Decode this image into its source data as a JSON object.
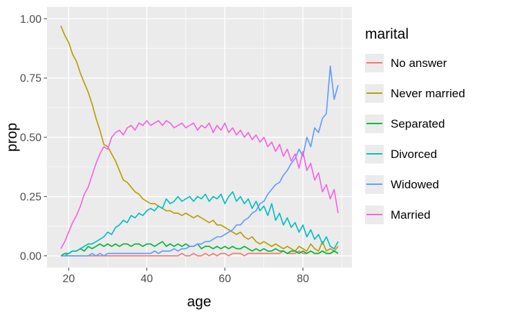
{
  "figure": {
    "background": "#FFFFFF",
    "panel_background": "#EBEBEB",
    "grid_color": "#FFFFFF",
    "tick_color": "#333333",
    "tick_label_color": "#4D4D4D",
    "text_color": "#000000"
  },
  "chart_data": {
    "type": "line",
    "title": "",
    "xlabel": "age",
    "ylabel": "prop",
    "legend_title": "marital",
    "legend_position": "right",
    "grid": true,
    "xlim": [
      14.45,
      92.55
    ],
    "ylim": [
      -0.05,
      1.05
    ],
    "x_ticks": {
      "values": [
        20,
        40,
        60,
        80
      ],
      "labels": [
        "20",
        "40",
        "60",
        "80"
      ],
      "minor": [
        30,
        50,
        70,
        90
      ]
    },
    "y_ticks": {
      "values": [
        0,
        0.25,
        0.5,
        0.75,
        1
      ],
      "labels": [
        "0.00",
        "0.25",
        "0.50",
        "0.75",
        "1.00"
      ],
      "minor": [
        0.125,
        0.375,
        0.625,
        0.875
      ]
    },
    "x": [
      18,
      19,
      20,
      21,
      22,
      23,
      24,
      25,
      26,
      27,
      28,
      29,
      30,
      31,
      32,
      33,
      34,
      35,
      36,
      37,
      38,
      39,
      40,
      41,
      42,
      43,
      44,
      45,
      46,
      47,
      48,
      49,
      50,
      51,
      52,
      53,
      54,
      55,
      56,
      57,
      58,
      59,
      60,
      61,
      62,
      63,
      64,
      65,
      66,
      67,
      68,
      69,
      70,
      71,
      72,
      73,
      74,
      75,
      76,
      77,
      78,
      79,
      80,
      81,
      82,
      83,
      84,
      85,
      86,
      87,
      88,
      89
    ],
    "series": [
      {
        "name": "No answer",
        "color": "#F8766D",
        "values": [
          0,
          0,
          0,
          0,
          0,
          0,
          0,
          0,
          0,
          0,
          0,
          0,
          0,
          0,
          0,
          0,
          0,
          0,
          0,
          0,
          0,
          0,
          0,
          0,
          0,
          0,
          0,
          0,
          0,
          0,
          0,
          0.01,
          0,
          0,
          0.01,
          0,
          0,
          0.01,
          0,
          0.01,
          0,
          0.01,
          0.01,
          0,
          0.01,
          0.01,
          0.01,
          0,
          0.01,
          0.01,
          0.01,
          0.01,
          0.01,
          0.01,
          0.01,
          0.01,
          0.01,
          0.02,
          0.01,
          0.01,
          0.01,
          0.02,
          0.01,
          0.01,
          0.02,
          0.01,
          0.01,
          0.02,
          0.01,
          0.01,
          0.02,
          0.01
        ]
      },
      {
        "name": "Never married",
        "color": "#B79F00",
        "values": [
          0.97,
          0.93,
          0.9,
          0.85,
          0.82,
          0.77,
          0.73,
          0.69,
          0.64,
          0.58,
          0.53,
          0.47,
          0.46,
          0.43,
          0.4,
          0.36,
          0.32,
          0.31,
          0.29,
          0.27,
          0.26,
          0.24,
          0.23,
          0.22,
          0.22,
          0.21,
          0.2,
          0.19,
          0.19,
          0.18,
          0.18,
          0.17,
          0.18,
          0.17,
          0.16,
          0.17,
          0.16,
          0.15,
          0.14,
          0.15,
          0.13,
          0.13,
          0.12,
          0.11,
          0.1,
          0.09,
          0.1,
          0.08,
          0.07,
          0.08,
          0.06,
          0.05,
          0.06,
          0.05,
          0.04,
          0.05,
          0.04,
          0.03,
          0.04,
          0.03,
          0.02,
          0.04,
          0.03,
          0.02,
          0.05,
          0.03,
          0.02,
          0.06,
          0.02,
          0.03,
          0.02,
          0.04
        ]
      },
      {
        "name": "Separated",
        "color": "#00BA38",
        "values": [
          0,
          0.01,
          0.01,
          0.02,
          0.02,
          0.03,
          0.02,
          0.04,
          0.03,
          0.04,
          0.05,
          0.04,
          0.05,
          0.04,
          0.05,
          0.04,
          0.05,
          0.05,
          0.04,
          0.05,
          0.05,
          0.04,
          0.05,
          0.05,
          0.04,
          0.05,
          0.06,
          0.04,
          0.05,
          0.04,
          0.05,
          0.04,
          0.05,
          0.04,
          0.04,
          0.05,
          0.03,
          0.04,
          0.04,
          0.03,
          0.04,
          0.03,
          0.04,
          0.03,
          0.04,
          0.03,
          0.03,
          0.04,
          0.03,
          0.02,
          0.03,
          0.02,
          0.03,
          0.02,
          0.02,
          0.03,
          0.02,
          0.02,
          0.01,
          0.02,
          0.02,
          0.01,
          0.02,
          0.01,
          0.02,
          0.01,
          0.01,
          0.02,
          0.01,
          0.01,
          0.02,
          0.01
        ]
      },
      {
        "name": "Divorced",
        "color": "#00BFC4",
        "values": [
          0,
          0,
          0.01,
          0.02,
          0.02,
          0.03,
          0.04,
          0.05,
          0.05,
          0.06,
          0.07,
          0.08,
          0.1,
          0.09,
          0.12,
          0.13,
          0.15,
          0.14,
          0.17,
          0.16,
          0.18,
          0.17,
          0.19,
          0.2,
          0.19,
          0.21,
          0.2,
          0.24,
          0.22,
          0.23,
          0.25,
          0.23,
          0.24,
          0.25,
          0.23,
          0.25,
          0.24,
          0.26,
          0.23,
          0.25,
          0.24,
          0.26,
          0.22,
          0.25,
          0.27,
          0.23,
          0.25,
          0.22,
          0.24,
          0.2,
          0.23,
          0.19,
          0.21,
          0.17,
          0.22,
          0.15,
          0.18,
          0.13,
          0.16,
          0.12,
          0.14,
          0.1,
          0.13,
          0.08,
          0.11,
          0.07,
          0.09,
          0.05,
          0.08,
          0.04,
          0.03,
          0.06
        ]
      },
      {
        "name": "Widowed",
        "color": "#619CFF",
        "values": [
          0,
          0,
          0,
          0,
          0,
          0,
          0,
          0,
          0.01,
          0,
          0.01,
          0,
          0.01,
          0.01,
          0.01,
          0.01,
          0.01,
          0.01,
          0.01,
          0.01,
          0.01,
          0.01,
          0.01,
          0.01,
          0.02,
          0.01,
          0.02,
          0.02,
          0.02,
          0.03,
          0.02,
          0.03,
          0.03,
          0.04,
          0.04,
          0.05,
          0.05,
          0.06,
          0.06,
          0.07,
          0.08,
          0.08,
          0.09,
          0.1,
          0.11,
          0.13,
          0.13,
          0.15,
          0.16,
          0.18,
          0.19,
          0.22,
          0.23,
          0.26,
          0.28,
          0.3,
          0.31,
          0.34,
          0.36,
          0.39,
          0.41,
          0.45,
          0.42,
          0.5,
          0.46,
          0.54,
          0.52,
          0.58,
          0.6,
          0.8,
          0.66,
          0.72
        ]
      },
      {
        "name": "Married",
        "color": "#F564E3",
        "values": [
          0.03,
          0.06,
          0.1,
          0.14,
          0.17,
          0.21,
          0.26,
          0.29,
          0.34,
          0.39,
          0.43,
          0.46,
          0.45,
          0.5,
          0.52,
          0.53,
          0.51,
          0.54,
          0.55,
          0.53,
          0.56,
          0.55,
          0.57,
          0.55,
          0.56,
          0.57,
          0.55,
          0.57,
          0.56,
          0.54,
          0.55,
          0.56,
          0.54,
          0.55,
          0.56,
          0.53,
          0.55,
          0.54,
          0.56,
          0.52,
          0.55,
          0.53,
          0.56,
          0.52,
          0.54,
          0.51,
          0.53,
          0.5,
          0.52,
          0.49,
          0.51,
          0.48,
          0.5,
          0.46,
          0.48,
          0.44,
          0.47,
          0.42,
          0.45,
          0.4,
          0.43,
          0.37,
          0.44,
          0.36,
          0.39,
          0.32,
          0.35,
          0.27,
          0.3,
          0.24,
          0.28,
          0.18
        ]
      }
    ]
  }
}
